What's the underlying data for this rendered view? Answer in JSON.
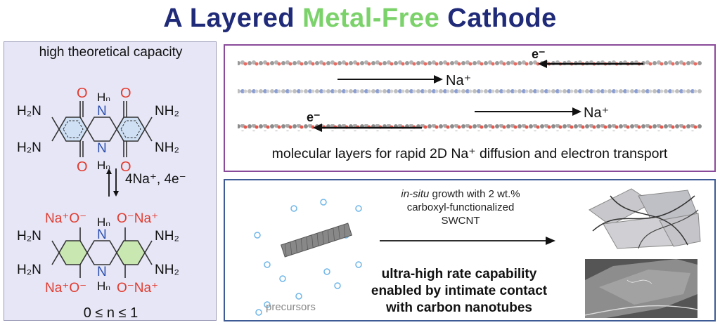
{
  "title": {
    "part1": "A Layered ",
    "part2": "Metal-Free",
    "part3": " Cathode"
  },
  "left_panel": {
    "caption": "high theoretical capacity",
    "reaction_label": "4Na⁺, 4e⁻",
    "condition": "0 ≤ n ≤ 1",
    "top_molecule": {
      "amine_left": "H₂N",
      "amine_right": "NH₂",
      "oxygen": "O",
      "bridge_n": "N",
      "bridge_h": "Hₙ"
    },
    "bottom_molecule": {
      "sodium_oxide_left": "Na⁺O⁻",
      "sodium_oxide_right": "O⁻Na⁺"
    }
  },
  "panel_a": {
    "caption": "molecular layers for rapid 2D Na⁺ diffusion and electron transport",
    "electron_label": "e⁻",
    "sodium_label": "Na⁺"
  },
  "panel_b": {
    "growth_line1_italic": "in-situ",
    "growth_line1_rest": " growth with 2 wt.%",
    "growth_line2": "carboxyl-functionalized",
    "growth_line3": "SWCNT",
    "rate_line1": "ultra-high rate capability",
    "rate_line2": "enabled by intimate contact",
    "rate_line3": "with carbon nanotubes",
    "precursors_label": "precursors"
  },
  "colors": {
    "title_blue": "#1f2a78",
    "title_green": "#7bd26a",
    "oxygen_red": "#e23b2e",
    "nitrogen_blue": "#2b4fb0",
    "ring_blue_fill": "#cfe0f5",
    "ring_green_fill": "#c9e7b0",
    "panel_a_border": "#8a4a9a",
    "panel_b_border": "#3e5b96",
    "left_panel_bg": "#e6e6f7"
  }
}
